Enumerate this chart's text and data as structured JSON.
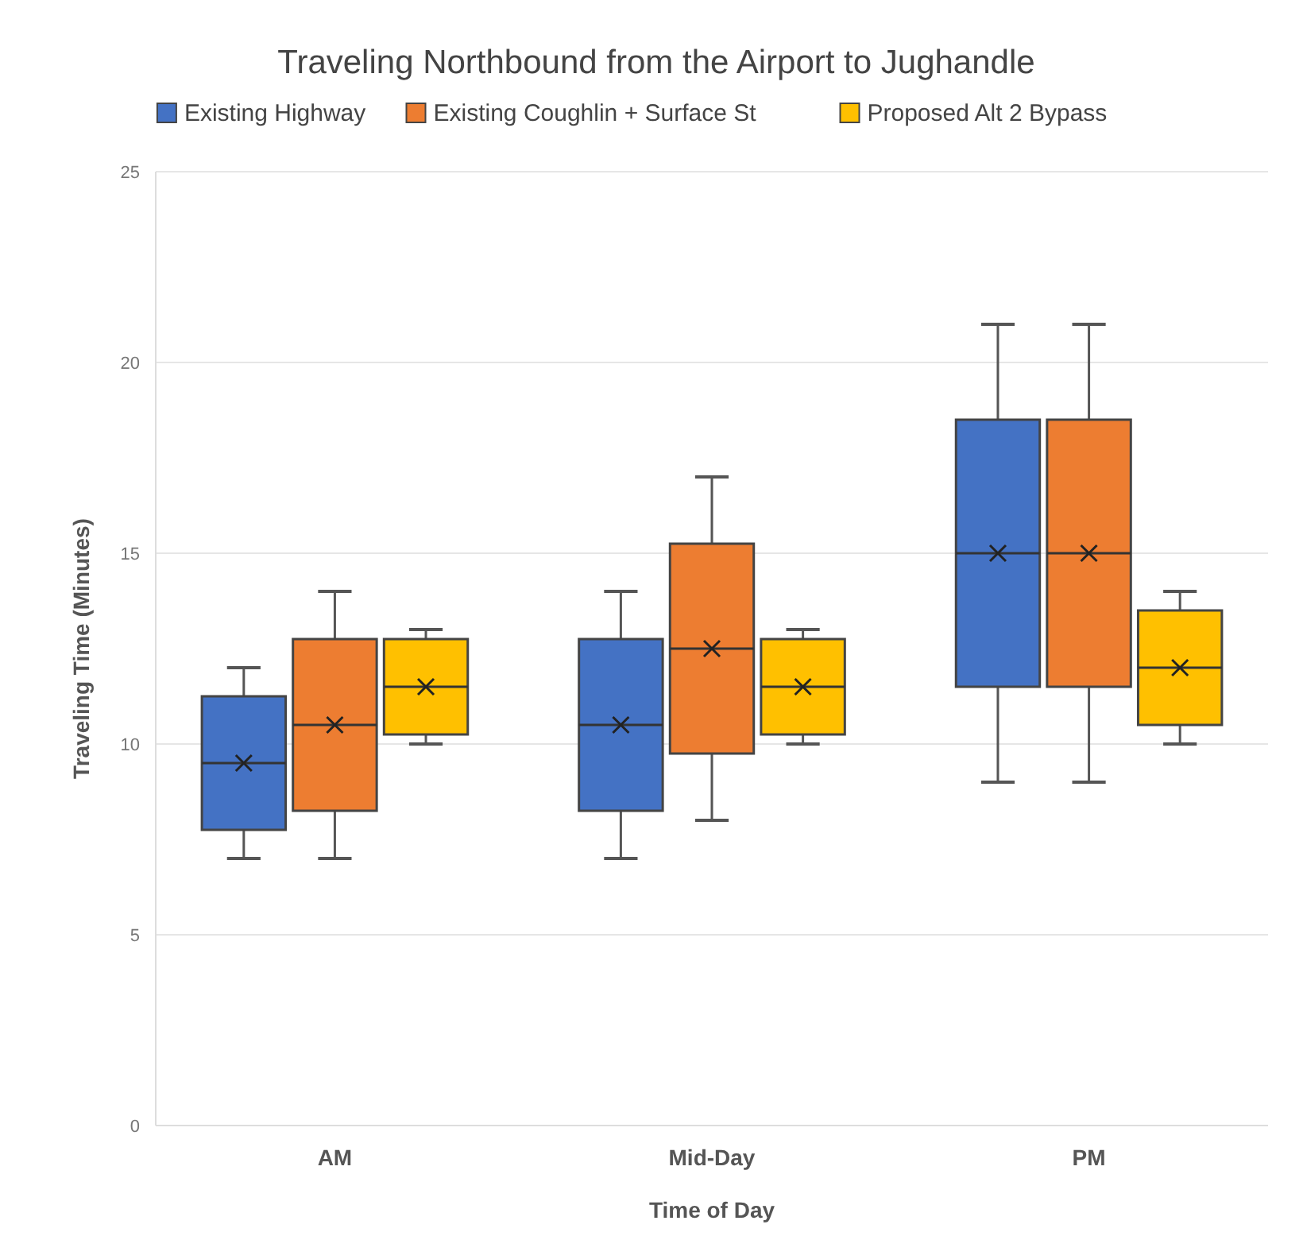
{
  "chart_data": {
    "type": "box",
    "title": "Traveling Northbound from the Airport to Jughandle",
    "xlabel": "Time of Day",
    "ylabel": "Traveling Time (Minutes)",
    "categories": [
      "AM",
      "Mid-Day",
      "PM"
    ],
    "series": [
      {
        "name": "Existing Highway",
        "color": "#4472c4",
        "boxes": [
          {
            "low": 7,
            "q1": 7.75,
            "median": 9.5,
            "q3": 11.25,
            "high": 12,
            "mean": 9.5
          },
          {
            "low": 7,
            "q1": 8.25,
            "median": 10.5,
            "q3": 12.75,
            "high": 14,
            "mean": 10.5
          },
          {
            "low": 9,
            "q1": 11.5,
            "median": 15,
            "q3": 18.5,
            "high": 21,
            "mean": 15
          }
        ]
      },
      {
        "name": "Existing Coughlin + Surface St",
        "color": "#ed7d31",
        "boxes": [
          {
            "low": 7,
            "q1": 8.25,
            "median": 10.5,
            "q3": 12.75,
            "high": 14,
            "mean": 10.5
          },
          {
            "low": 8,
            "q1": 9.75,
            "median": 12.5,
            "q3": 15.25,
            "high": 17,
            "mean": 12.5
          },
          {
            "low": 9,
            "q1": 11.5,
            "median": 15,
            "q3": 18.5,
            "high": 21,
            "mean": 15
          }
        ]
      },
      {
        "name": "Proposed Alt 2 Bypass",
        "color": "#ffc000",
        "boxes": [
          {
            "low": 10,
            "q1": 10.25,
            "median": 11.5,
            "q3": 12.75,
            "high": 13,
            "mean": 11.5
          },
          {
            "low": 10,
            "q1": 10.25,
            "median": 11.5,
            "q3": 12.75,
            "high": 13,
            "mean": 11.5
          },
          {
            "low": 10,
            "q1": 10.5,
            "median": 12,
            "q3": 13.5,
            "high": 14,
            "mean": 12
          }
        ]
      }
    ],
    "ylim": [
      0,
      25
    ],
    "yticks": [
      0,
      5,
      10,
      15,
      20,
      25
    ],
    "grid": "y",
    "legend": "top"
  }
}
